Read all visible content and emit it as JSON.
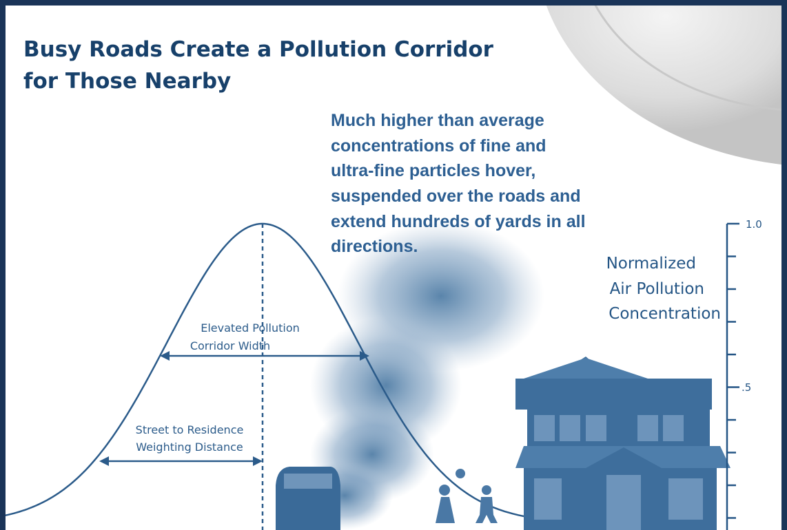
{
  "title_lines": [
    "Busy Roads Create a Pollution Corridor",
    "for Those Nearby"
  ],
  "callout_lines": [
    "Much higher than average",
    "concentrations of fine and",
    "ultra-fine particles hover,",
    "suspended over the roads and",
    "extend hundreds of yards in all",
    "directions."
  ],
  "scale": {
    "label_lines": [
      "Normalized",
      "Air Pollution",
      "Concentration"
    ],
    "tick_labels": [
      "1.0",
      ".5"
    ]
  },
  "annotations": {
    "corridor_width": [
      "Elevated Pollution",
      "Corridor Width"
    ],
    "weighting_distance": [
      "Street to Residence",
      "Weighting Distance"
    ]
  }
}
